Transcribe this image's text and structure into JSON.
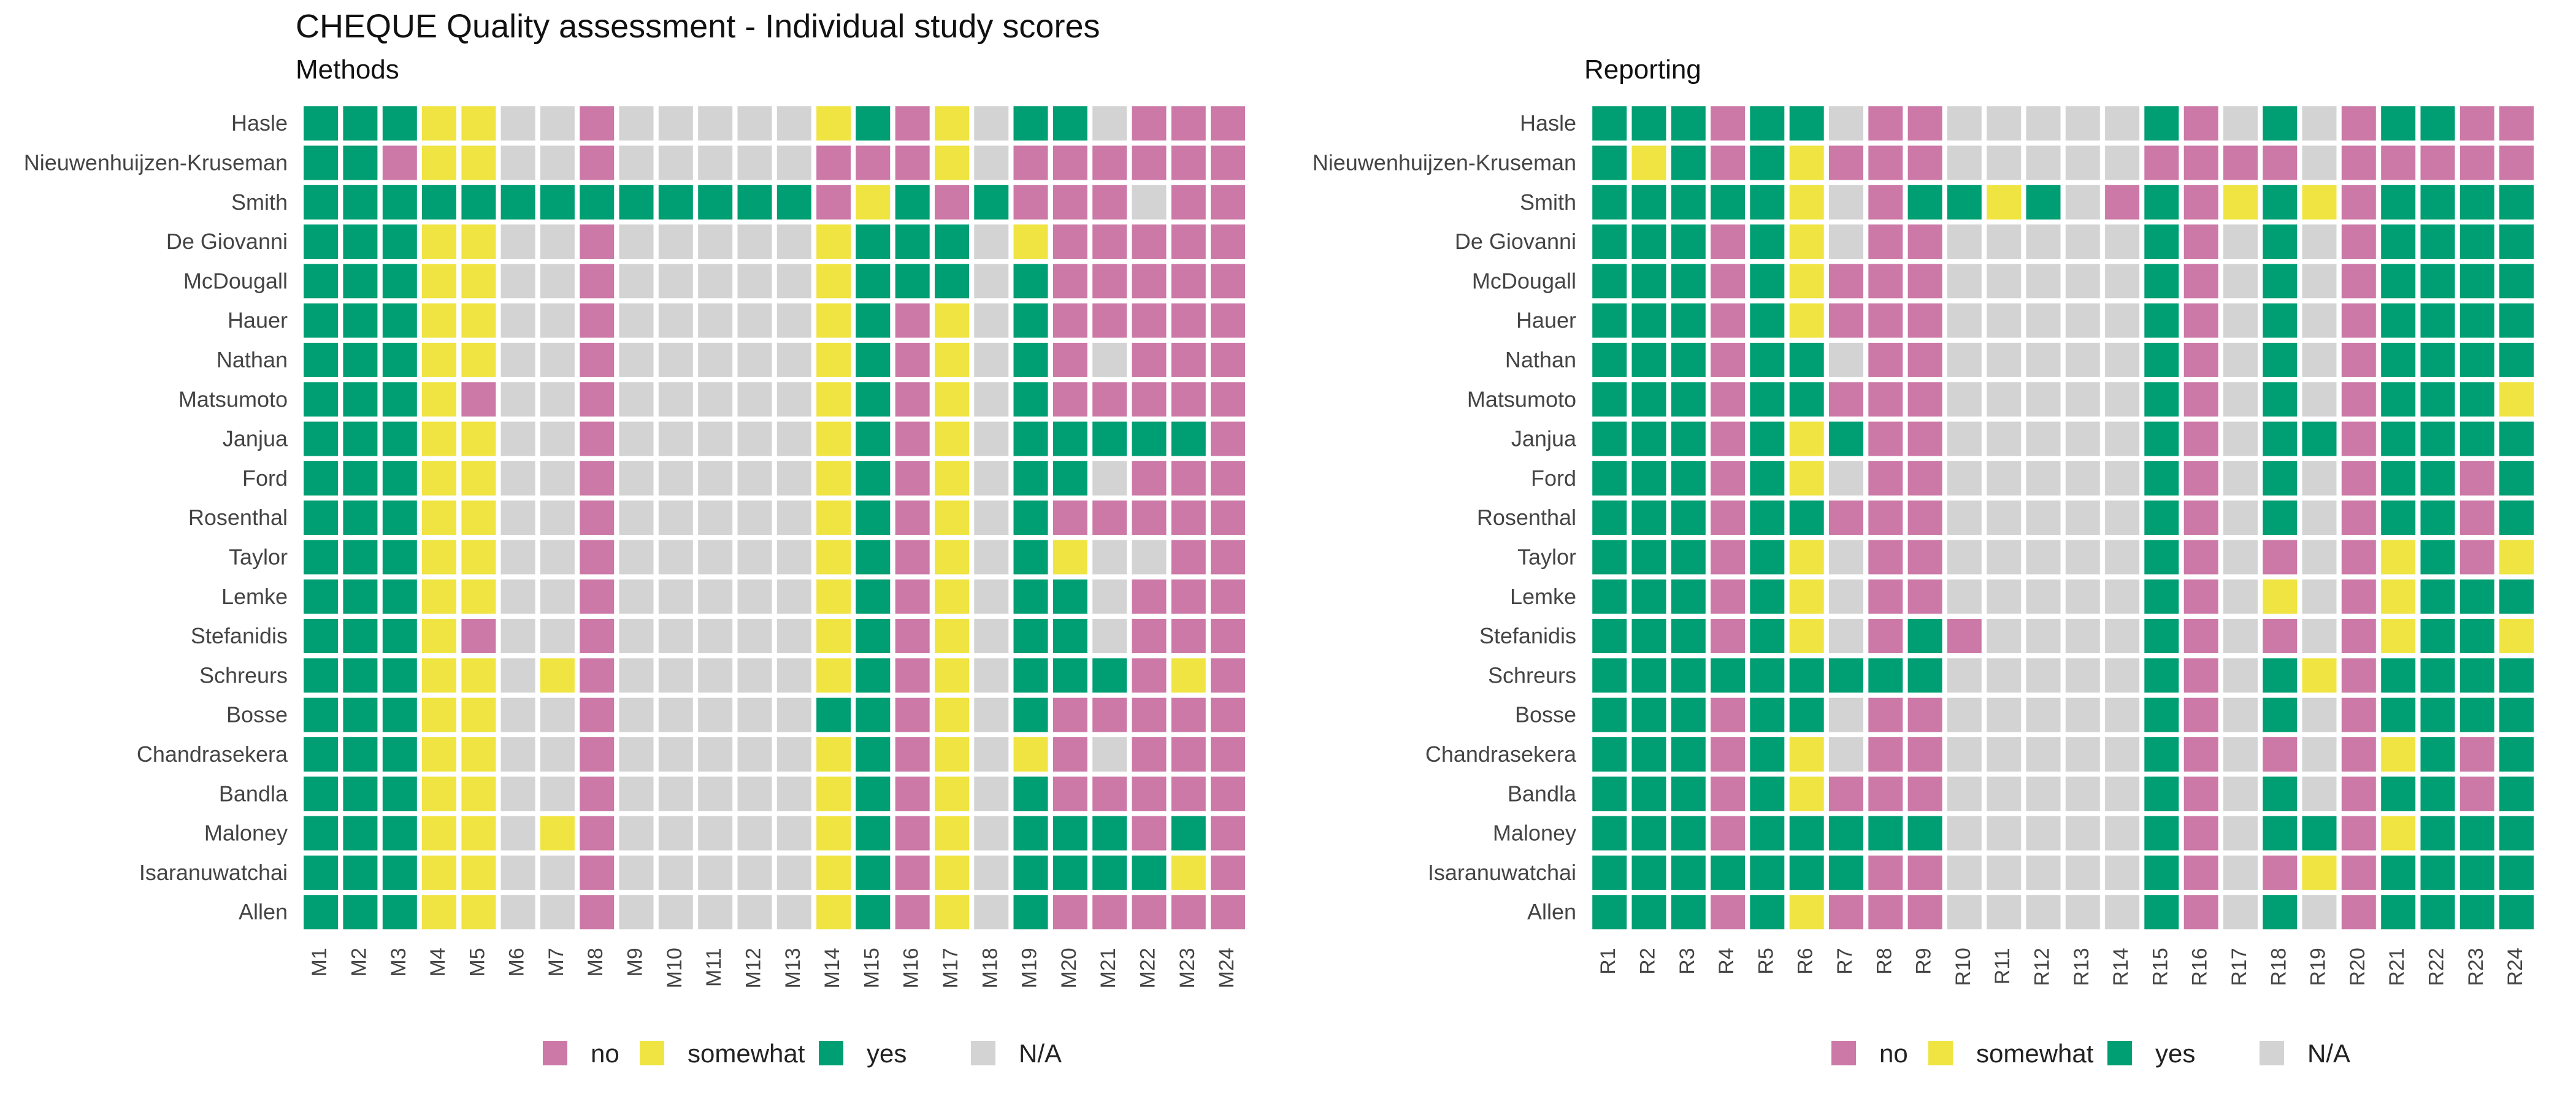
{
  "title": "CHEQUE Quality assessment - Individual study scores",
  "legend": [
    {
      "key": "n",
      "label": "no",
      "color": "#CC79A7"
    },
    {
      "key": "s",
      "label": "somewhat",
      "color": "#F0E442"
    },
    {
      "key": "y",
      "label": "yes",
      "color": "#009E73"
    },
    {
      "key": "x",
      "label": "N/A",
      "color": "#D3D3D3"
    }
  ],
  "chart_data": [
    {
      "type": "heatmap",
      "title": "Methods",
      "studies": [
        "Hasle",
        "Nieuwenhuijzen-Kruseman",
        "Smith",
        "De Giovanni",
        "McDougall",
        "Hauer",
        "Nathan",
        "Matsumoto",
        "Janjua",
        "Ford",
        "Rosenthal",
        "Taylor",
        "Lemke",
        "Stefanidis",
        "Schreurs",
        "Bosse",
        "Chandrasekera",
        "Bandla",
        "Maloney",
        "Isaranuwatchai",
        "Allen"
      ],
      "items": [
        "M1",
        "M2",
        "M3",
        "M4",
        "M5",
        "M6",
        "M7",
        "M8",
        "M9",
        "M10",
        "M11",
        "M12",
        "M13",
        "M14",
        "M15",
        "M16",
        "M17",
        "M18",
        "M19",
        "M20",
        "M21",
        "M22",
        "M23",
        "M24"
      ],
      "legend_position": "bottom",
      "values": [
        "yyysszznzzzzzsynszyyznnn",
        "yynsszznzzzzznnnsznnnnnn",
        "yyyyyyyyyyyyynsynynnnznn",
        "yyysszznzzzzzsyyyzsnnnnn",
        "yyysszznzzzzzsyyyzynnnnn",
        "yyysszznzzzzzsynszynnnnn",
        "yyysszznzzzzzsynszynznnn",
        "yyysnzznzzzzzsynszynnnnn",
        "yyysszznzzzzzsynszyyyyyn",
        "yyysszznzzzzzsynszyyznnn",
        "yyysszznzzzzzsynszynnnnn",
        "yyysszznzzzzzsynszyszznn",
        "yyysszznzzzzzsynszyyznnn",
        "yyysnzznzzzzzsynszyyznnn",
        "yyysszsnzzzzzsynszyyynsn",
        "yyysszznzzzzzyynszynnnnn",
        "yyysszznzzzzzsynszsnznnn",
        "yyysszznzzzzzsynszynnnnn",
        "yyysszsnzzzzzsynszyyynyn",
        "yyysszznzzzzzsynszyyyysn",
        "yyysszznzzzzzsynszynnnnn"
      ]
    },
    {
      "type": "heatmap",
      "title": "Reporting",
      "studies": [
        "Hasle",
        "Nieuwenhuijzen-Kruseman",
        "Smith",
        "De Giovanni",
        "McDougall",
        "Hauer",
        "Nathan",
        "Matsumoto",
        "Janjua",
        "Ford",
        "Rosenthal",
        "Taylor",
        "Lemke",
        "Stefanidis",
        "Schreurs",
        "Bosse",
        "Chandrasekera",
        "Bandla",
        "Maloney",
        "Isaranuwatchai",
        "Allen"
      ],
      "items": [
        "R1",
        "R2",
        "R3",
        "R4",
        "R5",
        "R6",
        "R7",
        "R8",
        "R9",
        "R10",
        "R11",
        "R12",
        "R13",
        "R14",
        "R15",
        "R16",
        "R17",
        "R18",
        "R19",
        "R20",
        "R21",
        "R22",
        "R23",
        "R24"
      ],
      "legend_position": "bottom",
      "values": [
        "yyynyyznnzzzzzynzyznyynn",
        "ysynysnnnzzzzznnnnznnnnn",
        "yyyyysznyysyznynsysnyyyy",
        "yyynysznnzzzzzynzyznyyyy",
        "yyynysnnnzzzzzynzyznyyyy",
        "yyynysnnnzzzzzynzyznyyyy",
        "yyynyyznnzzzzzynzyznyyyy",
        "yyynyynnnzzzzzynzyznyyys",
        "yyynysynnzzzzzynzyynyyyy",
        "yyynysznnzzzzzynzyznyyny",
        "yyynyynnnzzzzzynzyznyyny",
        "yyynysznnzzzzzynznznsyns",
        "yyynysznnzzzzzynzsznsyyy",
        "yyynysznynzzzzynznznsyys",
        "yyyyyyyyyzzzzzynzysnyyyy",
        "yyynyyznnzzzzzynzyznyyyy",
        "yyynysznnzzzzzynznznsyny",
        "yyynysnnnzzzzzynzyznyyny",
        "yyynyyyyyzzzzzynzyynsyyy",
        "yyyyyyynnzzzzzynznsnyyyy",
        "yyynysnnnzzzzzynzyznyyyy"
      ]
    }
  ]
}
